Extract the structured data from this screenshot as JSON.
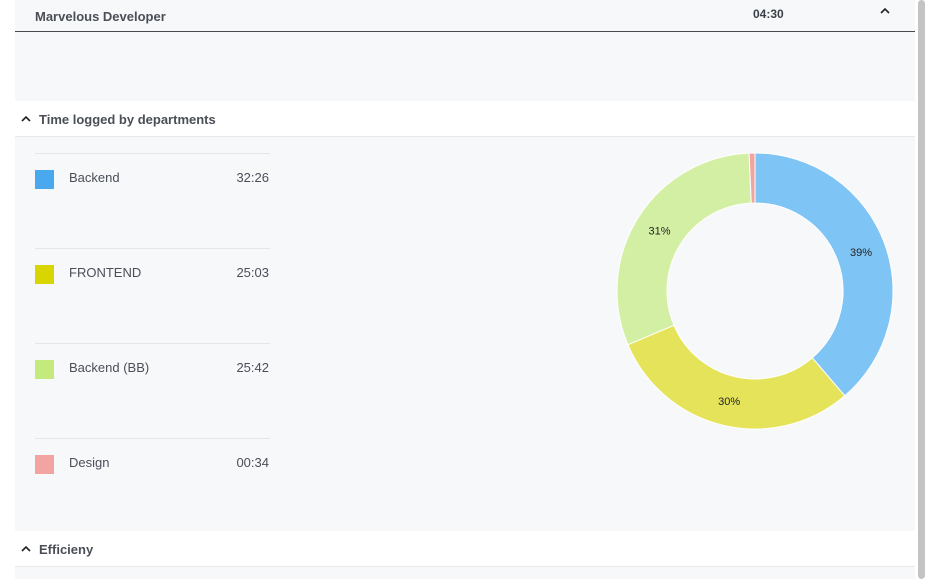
{
  "header": {
    "title": "Marvelous Developer",
    "time": "04:30"
  },
  "sections": {
    "departments": {
      "title": "Time logged by departments"
    },
    "efficiency": {
      "title": "Efficieny"
    }
  },
  "legend": [
    {
      "name": "Backend",
      "time": "32:26",
      "color": "#4aa8ef"
    },
    {
      "name": "FRONTEND",
      "time": "25:03",
      "color": "#d8d500"
    },
    {
      "name": "Backend (BB)",
      "time": "25:42",
      "color": "#c4ea7e"
    },
    {
      "name": "Design",
      "time": "00:34",
      "color": "#f2a4a2"
    }
  ],
  "chart_data": {
    "type": "pie",
    "donut": true,
    "series": [
      {
        "name": "Backend",
        "value": 32.43,
        "label": "39%",
        "color": "#7ec4f5"
      },
      {
        "name": "FRONTEND",
        "value": 25.05,
        "label": "30%",
        "color": "#e5e35a"
      },
      {
        "name": "Backend (BB)",
        "value": 25.7,
        "label": "31%",
        "color": "#d3efa4"
      },
      {
        "name": "Design",
        "value": 0.57,
        "label": "",
        "color": "#f2a4a2"
      }
    ]
  }
}
